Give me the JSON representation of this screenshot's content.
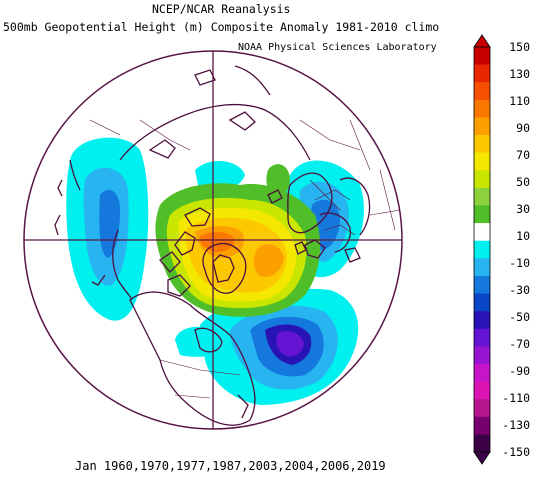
{
  "header": {
    "line1": "NCEP/NCAR Reanalysis",
    "line2": "500mb Geopotential Height (m) Composite Anomaly 1981-2010 climo",
    "credit": "NOAA Physical Sciences Laboratory"
  },
  "footer": {
    "dates": "Jan 1960,1970,1977,1987,2003,2004,2006,2019"
  },
  "colorbar": {
    "labels": [
      "150",
      "130",
      "110",
      "90",
      "70",
      "50",
      "30",
      "10",
      "-10",
      "-30",
      "-50",
      "-70",
      "-90",
      "-110",
      "-130",
      "-150"
    ],
    "colors": [
      "#c80000",
      "#e82800",
      "#f45000",
      "#fa7800",
      "#fca000",
      "#fcc800",
      "#f4e800",
      "#c8e600",
      "#8cd23c",
      "#50be28",
      "#ffffff",
      "#00f0f0",
      "#28b4f0",
      "#1478dc",
      "#0a46c8",
      "#2814b4",
      "#6414d2",
      "#9614d2",
      "#c814c8",
      "#dc14b4",
      "#b4148c",
      "#78006e",
      "#3c0046"
    ],
    "top_arrow_color": "#c80000",
    "bottom_arrow_color": "#3c0046"
  },
  "map": {
    "projection": "north-polar-stereographic",
    "boundary_color": "#5a1446",
    "coast_color": "#4b0f3c"
  }
}
